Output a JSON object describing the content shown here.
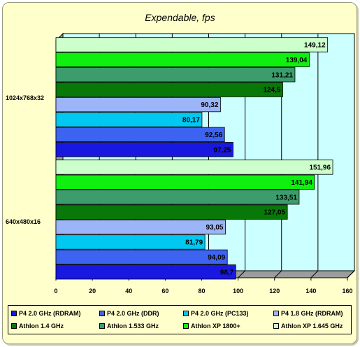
{
  "chart_data": {
    "type": "bar",
    "orientation": "horizontal",
    "title": "Expendable, fps",
    "xlim": [
      0,
      160
    ],
    "xticks": [
      0,
      20,
      40,
      60,
      80,
      100,
      120,
      140,
      160
    ],
    "grid": true,
    "legend_position": "bottom",
    "categories": [
      "1024x768x32",
      "640x480x16"
    ],
    "series": [
      {
        "name": "P4 2.0 GHz (RDRAM)",
        "color": "#1818e0",
        "values": [
          97.25,
          98.7
        ]
      },
      {
        "name": "P4 2.0 GHz (DDR)",
        "color": "#3c64f0",
        "values": [
          92.56,
          94.09
        ]
      },
      {
        "name": "P4 2.0 GHz (PC133)",
        "color": "#00c8f0",
        "values": [
          80.17,
          81.79
        ]
      },
      {
        "name": "P4 1.8 GHz (RDRAM)",
        "color": "#9cb4f8",
        "values": [
          90.32,
          93.05
        ]
      },
      {
        "name": "Athlon 1.4 GHz",
        "color": "#087808",
        "values": [
          124.5,
          127.05
        ]
      },
      {
        "name": "Athlon 1.533 GHz",
        "color": "#3c9c6c",
        "values": [
          131.21,
          133.51
        ]
      },
      {
        "name": "Athlon XP 1800+",
        "color": "#10f010",
        "values": [
          139.04,
          141.94
        ]
      },
      {
        "name": "Athlon XP 1.645 GHz",
        "color": "#ccffcc",
        "values": [
          149.12,
          151.96
        ]
      }
    ],
    "value_labels": [
      [
        "97,25",
        "92,56",
        "80,17",
        "90,32",
        "124,5",
        "131,21",
        "139,04",
        "149,12"
      ],
      [
        "98,7",
        "94,09",
        "81,79",
        "93,05",
        "127,05",
        "133,51",
        "141,94",
        "151,96"
      ]
    ]
  }
}
